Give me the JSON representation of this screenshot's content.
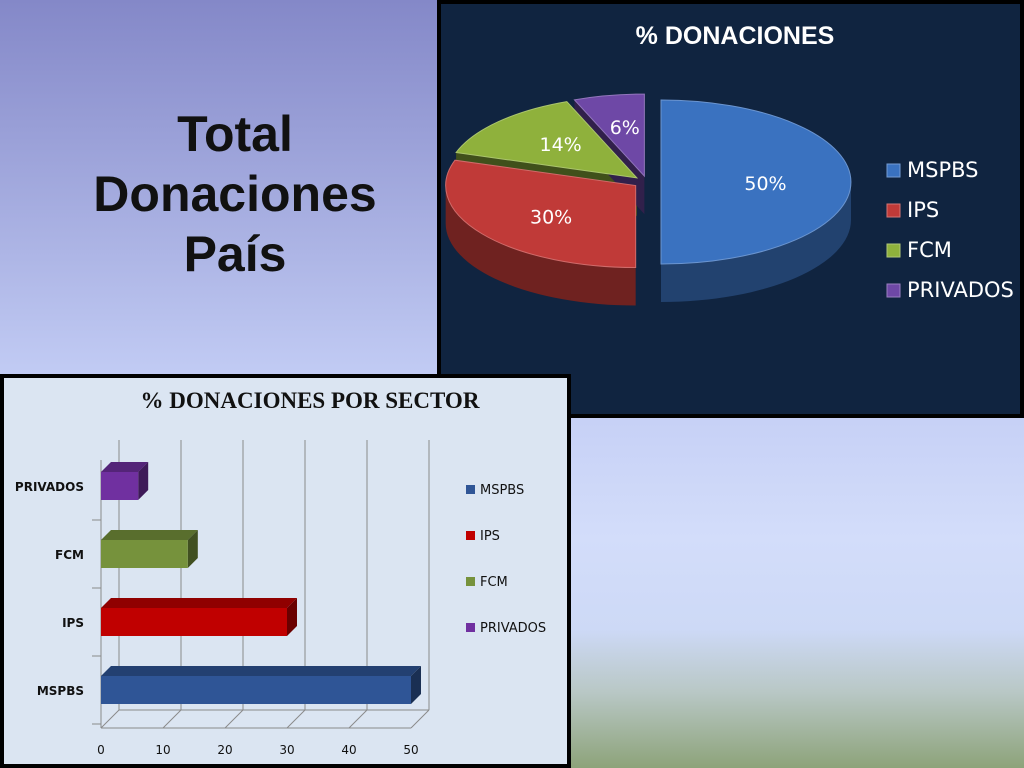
{
  "slide": {
    "title_lines": [
      "Total",
      "Donaciones",
      "País"
    ]
  },
  "chart_data": [
    {
      "type": "pie",
      "title": "% DONACIONES",
      "categories": [
        "MSPBS",
        "IPS",
        "FCM",
        "PRIVADOS"
      ],
      "values": [
        50,
        30,
        14,
        6
      ],
      "labels": [
        "50%",
        "30%",
        "14%",
        "6%"
      ],
      "colors": [
        "#3a72c0",
        "#c03a38",
        "#8fb13c",
        "#6e48a6"
      ],
      "legend": "right",
      "exploded": true,
      "three_d": true
    },
    {
      "type": "bar",
      "orientation": "horizontal",
      "title": "% DONACIONES POR SECTOR",
      "categories": [
        "MSPBS",
        "IPS",
        "FCM",
        "PRIVADOS"
      ],
      "values": [
        50,
        30,
        14,
        6
      ],
      "colors": [
        "#2f5596",
        "#c00000",
        "#76923c",
        "#7030a0"
      ],
      "xlim": [
        0,
        50
      ],
      "xticks": [
        "0",
        "10",
        "20",
        "30",
        "40",
        "50"
      ],
      "grid": true,
      "legend": "right",
      "three_d": true
    }
  ]
}
